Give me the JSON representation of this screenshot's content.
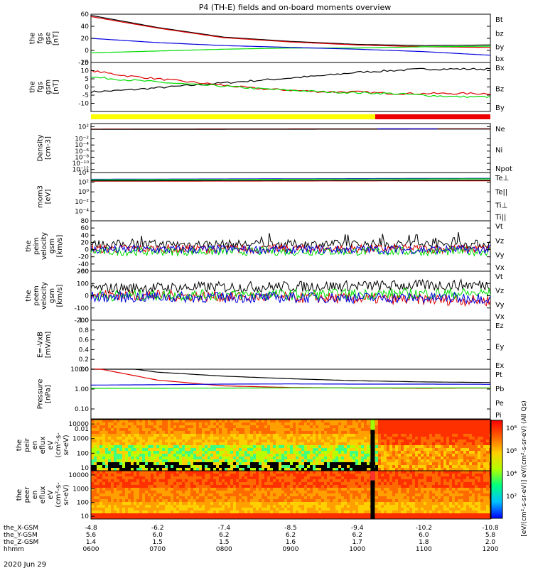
{
  "title": "P4 (TH-E) fields and on-board moments overview",
  "date_label": "2020 Jun 29",
  "colors": {
    "black": "#000000",
    "red": "#dd0000",
    "green": "#00dd00",
    "blue": "#0000dd",
    "yellow": "#ffff00",
    "bar_red": "#ee0000"
  },
  "chart_data": [
    {
      "type": "line",
      "id": "fgs_gse",
      "ylabel": [
        "the",
        "fgs",
        "gse",
        "[nT]"
      ],
      "ylim": [
        -20,
        60
      ],
      "yticks": [
        "60",
        "40",
        "20",
        "0",
        "-20"
      ],
      "ytick_vals": [
        60,
        40,
        20,
        0,
        -20
      ],
      "series": [
        {
          "name": "Bt",
          "color": "black",
          "x": [
            6.0,
            7.0,
            8.0,
            9.0,
            10.0,
            11.0,
            12.0
          ],
          "y": [
            58,
            38,
            22,
            15,
            10,
            8,
            9
          ]
        },
        {
          "name": "bz",
          "color": "red",
          "x": [
            6.0,
            7.0,
            8.0,
            9.0,
            10.0,
            11.0,
            12.0
          ],
          "y": [
            56,
            37,
            21,
            14,
            9,
            6,
            5
          ]
        },
        {
          "name": "by",
          "color": "green",
          "x": [
            6.0,
            7.0,
            8.0,
            9.0,
            10.0,
            11.0,
            12.0
          ],
          "y": [
            -4,
            -1,
            2,
            4,
            4,
            6,
            7
          ]
        },
        {
          "name": "bx",
          "color": "blue",
          "x": [
            6.0,
            7.0,
            8.0,
            9.0,
            10.0,
            11.0,
            12.0
          ],
          "y": [
            20,
            13,
            8,
            5,
            2,
            -2,
            -8
          ]
        }
      ]
    },
    {
      "type": "line",
      "id": "fgs_gsm",
      "ylabel": [
        "the",
        "fgs",
        "gsm",
        "[nT]"
      ],
      "ylim": [
        -15,
        15
      ],
      "yticks": [
        "15",
        "10",
        "5",
        "0",
        "-5",
        "-10"
      ],
      "ytick_vals": [
        15,
        10,
        5,
        0,
        -5,
        -10
      ],
      "series": [
        {
          "name": "Bx",
          "color": "black",
          "x": [
            6.0,
            6.5,
            7.0,
            7.5,
            8.0,
            8.5,
            9.0,
            9.5,
            10.0,
            10.5,
            11.0,
            11.5,
            12.0
          ],
          "y": [
            -3,
            -2,
            -0.5,
            1,
            2.5,
            4,
            5.5,
            7,
            9,
            10,
            11,
            11,
            11
          ]
        },
        {
          "name": "Bz",
          "color": "red",
          "x": [
            6.0,
            6.5,
            7.0,
            7.5,
            8.0,
            8.5,
            9.0,
            9.5,
            10.0,
            10.5,
            11.0,
            11.5,
            12.0
          ],
          "y": [
            10,
            7,
            5,
            3,
            1,
            -1,
            -2,
            -3,
            -3,
            -4,
            -4,
            -4,
            -4
          ]
        },
        {
          "name": "By",
          "color": "green",
          "x": [
            6.0,
            6.5,
            7.0,
            7.5,
            8.0,
            8.5,
            9.0,
            9.5,
            10.0,
            10.5,
            11.0,
            11.5,
            12.0
          ],
          "y": [
            6,
            4.5,
            3,
            1.5,
            0.5,
            -1,
            -2,
            -3,
            -3.5,
            -4,
            -5,
            -6,
            -6
          ]
        }
      ]
    },
    {
      "type": "bar",
      "id": "mode_bar",
      "segments": [
        {
          "x0": 6.0,
          "x1": 10.27,
          "color": "yellow"
        },
        {
          "x0": 10.27,
          "x1": 12.0,
          "color": "bar_red"
        }
      ]
    },
    {
      "type": "line",
      "id": "density",
      "scale": "log",
      "ylabel": [
        "Density",
        "[cm-3]"
      ],
      "ylim": [
        -13,
        3
      ],
      "yticks": [
        "10²",
        "10⁻²",
        "10⁻⁴",
        "10⁻⁶",
        "10⁻⁸",
        "10⁻¹⁰",
        "10⁻¹²"
      ],
      "ytick_vals": [
        2,
        -2,
        -4,
        -6,
        -8,
        -10,
        -12
      ],
      "series": [
        {
          "name": "Ne",
          "color": "red",
          "x": [
            6.0,
            12.0
          ],
          "y": [
            1.2,
            1.3
          ]
        },
        {
          "name": "Ni",
          "color": "black",
          "x": [
            6.0,
            12.0
          ],
          "y": [
            1.1,
            1.2
          ]
        },
        {
          "name": "Npot",
          "color": "blue",
          "x": [
            10.3,
            11.2
          ],
          "y": [
            1.25,
            1.25
          ]
        }
      ]
    },
    {
      "type": "line",
      "id": "temperature",
      "scale": "log",
      "ylabel": [
        "mom3",
        "[eV]"
      ],
      "ylim": [
        -6,
        4
      ],
      "yticks": [
        "10⁴",
        "10²",
        "10⁰",
        "10⁻²",
        "10⁻⁴"
      ],
      "ytick_vals": [
        4,
        2,
        0,
        -2,
        -4
      ],
      "series": [
        {
          "name": "Te⊥",
          "color": "red",
          "x": [
            6.0,
            12.0
          ],
          "y": [
            2.2,
            2.3
          ]
        },
        {
          "name": "Te||",
          "color": "black",
          "x": [
            6.0,
            12.0
          ],
          "y": [
            2.3,
            2.4
          ]
        },
        {
          "name": "Ti⊥",
          "color": "blue",
          "x": [
            6.0,
            12.0
          ],
          "y": [
            2.6,
            2.8
          ]
        },
        {
          "name": "Ti||",
          "color": "green",
          "x": [
            6.0,
            12.0
          ],
          "y": [
            2.5,
            2.7
          ]
        }
      ]
    },
    {
      "type": "line",
      "id": "peim_velocity",
      "ylabel": [
        "the",
        "peim",
        "velocity",
        "gsm",
        "[km/s]"
      ],
      "ylim": [
        -60,
        80
      ],
      "yticks": [
        "80",
        "60",
        "40",
        "20",
        "0",
        "-20",
        "-40",
        "-60"
      ],
      "ytick_vals": [
        80,
        60,
        40,
        20,
        0,
        -20,
        -40,
        -60
      ],
      "series": [
        {
          "name": "Vt",
          "color": "black",
          "x": [
            6.0,
            12.0
          ],
          "y": [
            15,
            15
          ]
        },
        {
          "name": "Vz",
          "color": "red",
          "x": [
            6.0,
            12.0
          ],
          "y": [
            2,
            2
          ]
        },
        {
          "name": "Vy",
          "color": "green",
          "x": [
            6.0,
            12.0
          ],
          "y": [
            -5,
            -5
          ]
        },
        {
          "name": "Vx",
          "color": "blue",
          "x": [
            6.0,
            12.0
          ],
          "y": [
            0,
            0
          ]
        }
      ]
    },
    {
      "type": "line",
      "id": "peem_velocity",
      "ylabel": [
        "the",
        "peem",
        "velocity",
        "gsm",
        "[km/s]"
      ],
      "ylim": [
        -200,
        200
      ],
      "yticks": [
        "200",
        "100",
        "0",
        "-100",
        "-200"
      ],
      "ytick_vals": [
        200,
        100,
        0,
        -100,
        -200
      ],
      "series": [
        {
          "name": "Vt",
          "color": "black",
          "x": [
            6.0,
            12.0
          ],
          "y": [
            60,
            90
          ]
        },
        {
          "name": "Vz",
          "color": "red",
          "x": [
            6.0,
            12.0
          ],
          "y": [
            10,
            -40
          ]
        },
        {
          "name": "Vy",
          "color": "green",
          "x": [
            6.0,
            12.0
          ],
          "y": [
            0,
            20
          ]
        },
        {
          "name": "Vx",
          "color": "blue",
          "x": [
            6.0,
            12.0
          ],
          "y": [
            -10,
            -20
          ]
        }
      ]
    },
    {
      "type": "line",
      "id": "efield",
      "ylabel": [
        "E=-VxB",
        "[mV/m]"
      ],
      "ylim": [
        0,
        1
      ],
      "yticks": [
        "1.0",
        "0.8",
        "0.6",
        "0.4",
        "0.2",
        "0.0"
      ],
      "ytick_vals": [
        1.0,
        0.8,
        0.6,
        0.4,
        0.2,
        0.0
      ],
      "series": [
        {
          "name": "Ez",
          "color": "red",
          "x": [],
          "y": []
        },
        {
          "name": "Ey",
          "color": "green",
          "x": [],
          "y": []
        },
        {
          "name": "Ex",
          "color": "blue",
          "x": [],
          "y": []
        }
      ]
    },
    {
      "type": "line",
      "id": "pressure",
      "scale": "log",
      "ylabel": [
        "Pressure",
        "[nPa]"
      ],
      "ylim": [
        -1.5,
        1.0
      ],
      "yticks": [
        "10.00",
        "1.00",
        "0.10",
        "0.01"
      ],
      "ytick_vals": [
        1,
        0,
        -1,
        -2
      ],
      "series": [
        {
          "name": "Pt",
          "color": "black",
          "x": [
            6.0,
            7.0,
            8.0,
            9.0,
            10.0,
            11.0,
            12.0
          ],
          "y": [
            1.3,
            0.85,
            0.65,
            0.52,
            0.42,
            0.36,
            0.33
          ]
        },
        {
          "name": "Pb",
          "color": "red",
          "x": [
            6.0,
            7.0,
            8.0,
            9.0,
            10.0,
            11.0,
            12.0
          ],
          "y": [
            1.1,
            0.45,
            0.16,
            0.08,
            0.05,
            0.04,
            0.05
          ]
        },
        {
          "name": "Pe",
          "color": "blue",
          "x": [
            6.0,
            7.0,
            8.0,
            9.0,
            10.0,
            11.0,
            12.0
          ],
          "y": [
            0.2,
            0.22,
            0.25,
            0.26,
            0.25,
            0.25,
            0.24
          ]
        },
        {
          "name": "Pi",
          "color": "green",
          "x": [
            6.0,
            7.0,
            8.0,
            9.0,
            10.0,
            11.0,
            12.0
          ],
          "y": [
            0.04,
            0.04,
            0.05,
            0.06,
            0.06,
            0.06,
            0.06
          ]
        }
      ]
    },
    {
      "type": "heatmap",
      "id": "peir_spec",
      "ylabel": [
        "the",
        "peir",
        "en",
        "eflux",
        "eV",
        "(cm²-s-",
        "sr-eV)"
      ],
      "scale": "log",
      "yticks": [
        "10000",
        "1000",
        "100",
        "10"
      ],
      "ytick_vals": [
        4,
        3,
        2,
        1
      ]
    },
    {
      "type": "heatmap",
      "id": "peer_spec",
      "ylabel": [
        "the",
        "peer",
        "en",
        "eflux",
        "eV",
        "(cm²-s-",
        "sr-eV)"
      ],
      "scale": "log",
      "yticks": [
        "10000",
        "1000",
        "100",
        "10"
      ],
      "ytick_vals": [
        4,
        3,
        2,
        1
      ]
    }
  ],
  "colorbar": {
    "label": "[eV/(cm²-s-sr-eV)] eV/(cm²-s-sr-eV) (All Qs)",
    "ticks": [
      "10⁸",
      "10⁶",
      "10⁴",
      "10²"
    ]
  },
  "x_axis": {
    "xlim": [
      6.0,
      12.0
    ],
    "ticks_x": [
      6.0,
      7.0,
      8.0,
      9.0,
      10.0,
      11.0,
      12.0
    ],
    "rows": [
      {
        "label": "the_X-GSM",
        "values": [
          "-4.8",
          "-6.2",
          "-7.4",
          "-8.5",
          "-9.4",
          "-10.2",
          "-10.8"
        ]
      },
      {
        "label": "the_Y-GSM",
        "values": [
          "5.6",
          "6.0",
          "6.2",
          "6.2",
          "6.2",
          "6.0",
          "5.8"
        ]
      },
      {
        "label": "the_Z-GSM",
        "values": [
          "1.4",
          "1.5",
          "1.5",
          "1.6",
          "1.7",
          "1.8",
          "2.0"
        ]
      },
      {
        "label": "hhmm",
        "values": [
          "0600",
          "0700",
          "0800",
          "0900",
          "1000",
          "1100",
          "1200"
        ]
      }
    ]
  }
}
